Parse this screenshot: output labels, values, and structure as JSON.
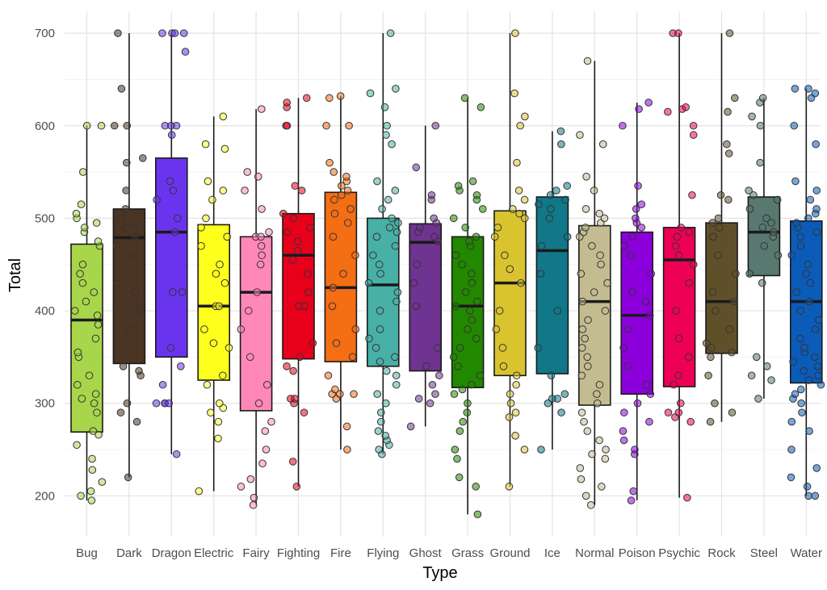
{
  "chart_data": {
    "type": "boxplot",
    "xlabel": "Type",
    "ylabel": "Total",
    "ylim": [
      150,
      720
    ],
    "y_ticks": [
      200,
      300,
      400,
      500,
      600,
      700
    ],
    "grid": true,
    "points_jittered": true,
    "categories": [
      {
        "name": "Bug",
        "color": "#a8d64b",
        "min": 195,
        "q1": 269,
        "median": 390,
        "q3": 472,
        "max": 600,
        "points": [
          195,
          200,
          205,
          215,
          228,
          240,
          255,
          266,
          270,
          290,
          300,
          305,
          310,
          320,
          330,
          350,
          355,
          370,
          385,
          395,
          400,
          410,
          420,
          430,
          440,
          450,
          470,
          475,
          485,
          490,
          495,
          500,
          505,
          515,
          550,
          600,
          600
        ]
      },
      {
        "name": "Dark",
        "color": "#4a3423",
        "min": 220,
        "q1": 343,
        "median": 479,
        "q3": 510,
        "max": 700,
        "points": [
          220,
          280,
          290,
          300,
          330,
          335,
          340,
          380,
          400,
          420,
          430,
          460,
          470,
          480,
          490,
          495,
          500,
          510,
          530,
          560,
          565,
          600,
          600,
          640,
          700
        ]
      },
      {
        "name": "Dragon",
        "color": "#6a34ef",
        "min": 245,
        "q1": 350,
        "median": 485,
        "q3": 565,
        "max": 700,
        "points": [
          245,
          300,
          300,
          300,
          300,
          320,
          340,
          360,
          420,
          420,
          485,
          500,
          520,
          530,
          540,
          590,
          600,
          600,
          600,
          680,
          700,
          700,
          700,
          700
        ]
      },
      {
        "name": "Electric",
        "color": "#ffff1e",
        "min": 205,
        "q1": 325,
        "median": 405,
        "q3": 493,
        "max": 610,
        "points": [
          205,
          262,
          280,
          290,
          295,
          300,
          320,
          330,
          360,
          365,
          380,
          405,
          405,
          430,
          440,
          450,
          470,
          480,
          490,
          500,
          520,
          530,
          540,
          575,
          580,
          610
        ]
      },
      {
        "name": "Fairy",
        "color": "#ff88b8",
        "min": 190,
        "q1": 292,
        "median": 420,
        "q3": 480,
        "max": 618,
        "points": [
          190,
          198,
          210,
          218,
          235,
          250,
          270,
          280,
          300,
          320,
          350,
          380,
          400,
          420,
          450,
          460,
          470,
          480,
          480,
          485,
          510,
          530,
          545,
          550,
          618
        ]
      },
      {
        "name": "Fighting",
        "color": "#e8001b",
        "min": 210,
        "q1": 348,
        "median": 460,
        "q3": 505,
        "max": 630,
        "points": [
          210,
          237,
          290,
          300,
          305,
          305,
          335,
          340,
          350,
          365,
          405,
          405,
          420,
          440,
          455,
          465,
          475,
          485,
          490,
          500,
          505,
          530,
          535,
          600,
          600,
          620,
          625,
          630
        ]
      },
      {
        "name": "Fire",
        "color": "#f46e14",
        "min": 250,
        "q1": 345,
        "median": 425,
        "q3": 528,
        "max": 632,
        "points": [
          250,
          275,
          305,
          310,
          310,
          310,
          315,
          330,
          350,
          365,
          380,
          405,
          425,
          440,
          460,
          480,
          495,
          505,
          510,
          520,
          525,
          530,
          535,
          540,
          545,
          550,
          560,
          600,
          600,
          630,
          632
        ]
      },
      {
        "name": "Flying",
        "color": "#48b0a6",
        "min": 245,
        "q1": 340,
        "median": 428,
        "q3": 500,
        "max": 700,
        "points": [
          245,
          250,
          255,
          260,
          265,
          270,
          280,
          290,
          300,
          310,
          320,
          330,
          335,
          345,
          350,
          360,
          370,
          380,
          400,
          410,
          420,
          430,
          440,
          450,
          460,
          470,
          480,
          485,
          490,
          495,
          500,
          510,
          520,
          530,
          540,
          580,
          590,
          600,
          620,
          635,
          640,
          700
        ]
      },
      {
        "name": "Ghost",
        "color": "#6f3391",
        "min": 275,
        "q1": 335,
        "median": 474,
        "q3": 494,
        "max": 600,
        "points": [
          275,
          300,
          305,
          310,
          320,
          330,
          340,
          360,
          405,
          430,
          450,
          475,
          480,
          485,
          490,
          495,
          500,
          520,
          525,
          555,
          600
        ]
      },
      {
        "name": "Grass",
        "color": "#228800",
        "min": 180,
        "q1": 317,
        "median": 405,
        "q3": 480,
        "max": 630,
        "points": [
          180,
          210,
          220,
          240,
          250,
          270,
          280,
          290,
          300,
          310,
          315,
          320,
          330,
          340,
          350,
          360,
          370,
          380,
          390,
          400,
          405,
          410,
          420,
          430,
          440,
          450,
          460,
          470,
          475,
          480,
          490,
          500,
          510,
          520,
          525,
          530,
          535,
          540,
          620,
          630
        ]
      },
      {
        "name": "Ground",
        "color": "#d9c430",
        "min": 210,
        "q1": 330,
        "median": 430,
        "q3": 508,
        "max": 700,
        "points": [
          210,
          250,
          265,
          285,
          290,
          300,
          310,
          320,
          330,
          340,
          360,
          380,
          400,
          430,
          445,
          460,
          480,
          490,
          500,
          505,
          510,
          520,
          530,
          560,
          600,
          610,
          635,
          700
        ]
      },
      {
        "name": "Ice",
        "color": "#107889",
        "min": 250,
        "q1": 332,
        "median": 465,
        "q3": 523,
        "max": 594,
        "points": [
          250,
          290,
          300,
          305,
          305,
          310,
          330,
          360,
          400,
          440,
          470,
          480,
          500,
          510,
          515,
          520,
          525,
          530,
          535,
          580,
          594
        ]
      },
      {
        "name": "Normal",
        "color": "#c3bc90",
        "min": 190,
        "q1": 298,
        "median": 410,
        "q3": 492,
        "max": 670,
        "points": [
          190,
          200,
          210,
          218,
          230,
          240,
          245,
          250,
          260,
          270,
          280,
          290,
          300,
          310,
          320,
          330,
          340,
          350,
          360,
          370,
          380,
          390,
          400,
          410,
          420,
          430,
          440,
          450,
          460,
          470,
          480,
          485,
          490,
          495,
          500,
          505,
          510,
          530,
          545,
          580,
          590,
          670
        ]
      },
      {
        "name": "Poison",
        "color": "#8c00dc",
        "min": 195,
        "q1": 310,
        "median": 395,
        "q3": 485,
        "max": 625,
        "points": [
          195,
          205,
          245,
          250,
          260,
          270,
          280,
          290,
          300,
          310,
          320,
          340,
          360,
          380,
          395,
          410,
          420,
          440,
          460,
          470,
          480,
          490,
          495,
          500,
          510,
          515,
          535,
          600,
          618,
          625
        ]
      },
      {
        "name": "Psychic",
        "color": "#ee0055",
        "min": 198,
        "q1": 318,
        "median": 455,
        "q3": 490,
        "max": 700,
        "points": [
          198,
          280,
          285,
          290,
          290,
          300,
          320,
          330,
          350,
          370,
          400,
          430,
          450,
          460,
          470,
          480,
          485,
          490,
          525,
          590,
          600,
          615,
          618,
          620,
          700,
          700
        ]
      },
      {
        "name": "Rock",
        "color": "#60502a",
        "min": 280,
        "q1": 354,
        "median": 410,
        "q3": 495,
        "max": 700,
        "points": [
          280,
          290,
          300,
          330,
          350,
          355,
          360,
          365,
          380,
          400,
          410,
          420,
          440,
          460,
          480,
          490,
          495,
          500,
          520,
          525,
          570,
          580,
          615,
          630,
          700
        ]
      },
      {
        "name": "Steel",
        "color": "#587870",
        "min": 305,
        "q1": 438,
        "median": 485,
        "q3": 523,
        "max": 630,
        "points": [
          305,
          325,
          330,
          340,
          350,
          430,
          440,
          460,
          470,
          480,
          485,
          490,
          495,
          500,
          510,
          520,
          525,
          530,
          560,
          600,
          610,
          625,
          630
        ]
      },
      {
        "name": "Water",
        "color": "#0b5cb9",
        "min": 200,
        "q1": 322,
        "median": 410,
        "q3": 497,
        "max": 640,
        "points": [
          200,
          200,
          210,
          220,
          230,
          250,
          270,
          280,
          290,
          300,
          305,
          310,
          315,
          320,
          325,
          330,
          335,
          340,
          345,
          350,
          355,
          360,
          370,
          380,
          390,
          400,
          410,
          420,
          430,
          440,
          450,
          460,
          470,
          480,
          485,
          490,
          495,
          500,
          505,
          510,
          520,
          530,
          540,
          580,
          600,
          630,
          635,
          640,
          640
        ]
      }
    ]
  }
}
